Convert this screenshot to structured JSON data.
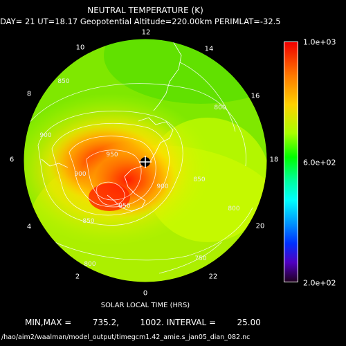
{
  "chart_data": {
    "type": "heatmap",
    "projection": "polar (south hemisphere)",
    "title": "NEUTRAL TEMPERATURE (K)",
    "subtitle": "DAY= 21 UT=18.17 Geopotential Altitude=220.00km PERIMLAT=-32.5",
    "xlabel": "SOLAR LOCAL TIME (HRS)",
    "local_time_labels": [
      "0",
      "2",
      "4",
      "6",
      "8",
      "10",
      "12",
      "14",
      "16",
      "18",
      "20",
      "22"
    ],
    "contour_labels": [
      "850",
      "900",
      "950",
      "800",
      "800",
      "850",
      "900",
      "900",
      "950",
      "850",
      "800",
      "750"
    ],
    "colorbar": {
      "max_label": "1.0e+03",
      "mid_label": "6.0e+02",
      "min_label": "2.0e+02",
      "vmin": 200,
      "vmax": 1000
    },
    "min_max_text": "MIN,MAX =        735.2,        1002. INTERVAL =        25.00",
    "min": 735.2,
    "max": 1002,
    "interval": 25.0,
    "pole_marker": "crosshair-icon",
    "max_region": "hot spot near LT 5–6 (yellow-red core ~1000 K), cooler green toward LT 12–14 (~750 K)"
  },
  "footer": {
    "file_path": "/hao/aim2/waalman/model_output/timegcm1.42_amie.s_jan05_dian_082.nc"
  }
}
